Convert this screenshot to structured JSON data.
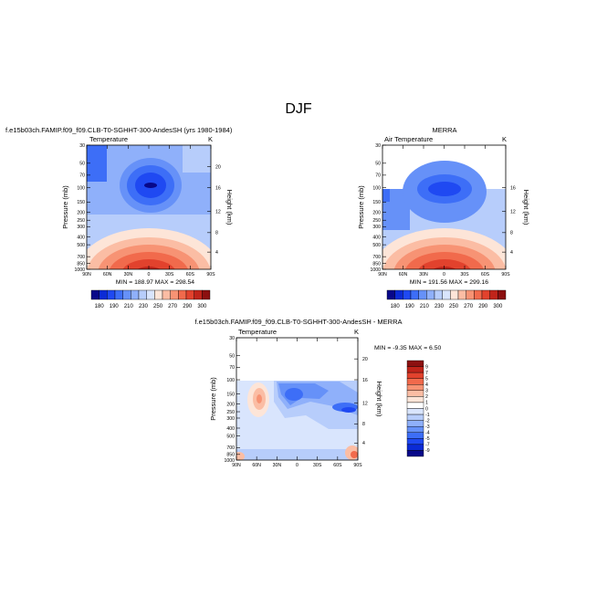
{
  "page": {
    "title": "DJF"
  },
  "colors": {
    "scale": [
      "#08088a",
      "#0b2bd6",
      "#1f49f2",
      "#3d6ef7",
      "#6691f8",
      "#8fb0fa",
      "#b7cdfb",
      "#d9e5fd",
      "#fde5d8",
      "#fbbda4",
      "#f79374",
      "#f16a4c",
      "#e2422d",
      "#c0241a",
      "#8c1010"
    ],
    "diff_scale": [
      "#08088a",
      "#0b2bd6",
      "#1f49f2",
      "#3d6ef7",
      "#6691f8",
      "#8fb0fa",
      "#b7cdfb",
      "#d9e5fd",
      "#ffffff",
      "#fde5d8",
      "#fbbda4",
      "#f79374",
      "#f16a4c",
      "#e2422d",
      "#c0241a",
      "#8c1010"
    ]
  },
  "chart_data": [
    {
      "type": "heatmap",
      "id": "model",
      "title": "f.e15b03ch.FAMIP.f09_f09.CLB-T0-SGHHT-300-AndesSH (yrs 1980-1984)",
      "subtitle_left": "Temperature",
      "subtitle_right": "K",
      "ylabel": "Pressure (mb)",
      "ylabel_right": "Height (km)",
      "x_ticks": [
        "90N",
        "60N",
        "30N",
        "0",
        "30S",
        "60S",
        "90S"
      ],
      "y_ticks": [
        "30",
        "50",
        "70",
        "100",
        "150",
        "200",
        "250",
        "300",
        "400",
        "500",
        "700",
        "850",
        "1000"
      ],
      "height_ticks": [
        "20",
        "16",
        "12",
        "8",
        "4"
      ],
      "stats": "MIN = 188.97   MAX = 298.54",
      "top_pressure": 30
    },
    {
      "type": "heatmap",
      "id": "merra",
      "title": "MERRA",
      "subtitle_left": "Air Temperature",
      "subtitle_right": "K",
      "ylabel": "Pressure (mb)",
      "ylabel_right": "Height (km)",
      "x_ticks": [
        "90N",
        "60N",
        "30N",
        "0",
        "30S",
        "60S",
        "90S"
      ],
      "y_ticks": [
        "30",
        "50",
        "70",
        "100",
        "150",
        "200",
        "250",
        "300",
        "400",
        "500",
        "700",
        "850",
        "1000"
      ],
      "height_ticks": [
        "16",
        "12",
        "8",
        "4"
      ],
      "stats": "MIN = 191.56   MAX = 299.16",
      "top_pressure": 100
    },
    {
      "type": "heatmap",
      "id": "diff",
      "title": "f.e15b03ch.FAMIP.f09_f09.CLB-T0-SGHHT-300-AndesSH - MERRA",
      "subtitle_left": "Temperature",
      "subtitle_right": "K",
      "ylabel": "Pressure (mb)",
      "ylabel_right": "Height (km)",
      "x_ticks": [
        "90N",
        "60N",
        "30N",
        "0",
        "30S",
        "60S",
        "90S"
      ],
      "y_ticks": [
        "30",
        "50",
        "70",
        "100",
        "150",
        "200",
        "250",
        "300",
        "400",
        "500",
        "700",
        "850",
        "1000"
      ],
      "height_ticks": [
        "20",
        "16",
        "12",
        "8",
        "4"
      ],
      "stats": "MIN =  -9.35   MAX =   6.50",
      "top_pressure": 100
    }
  ],
  "colorbar_main": {
    "labels": [
      "180",
      "190",
      "210",
      "230",
      "250",
      "270",
      "290",
      "300"
    ]
  },
  "colorbar_diff": {
    "labels": [
      "9",
      "7",
      "5",
      "4",
      "3",
      "2",
      "1",
      "0",
      "-1",
      "-2",
      "-3",
      "-4",
      "-5",
      "-7",
      "-9"
    ]
  }
}
